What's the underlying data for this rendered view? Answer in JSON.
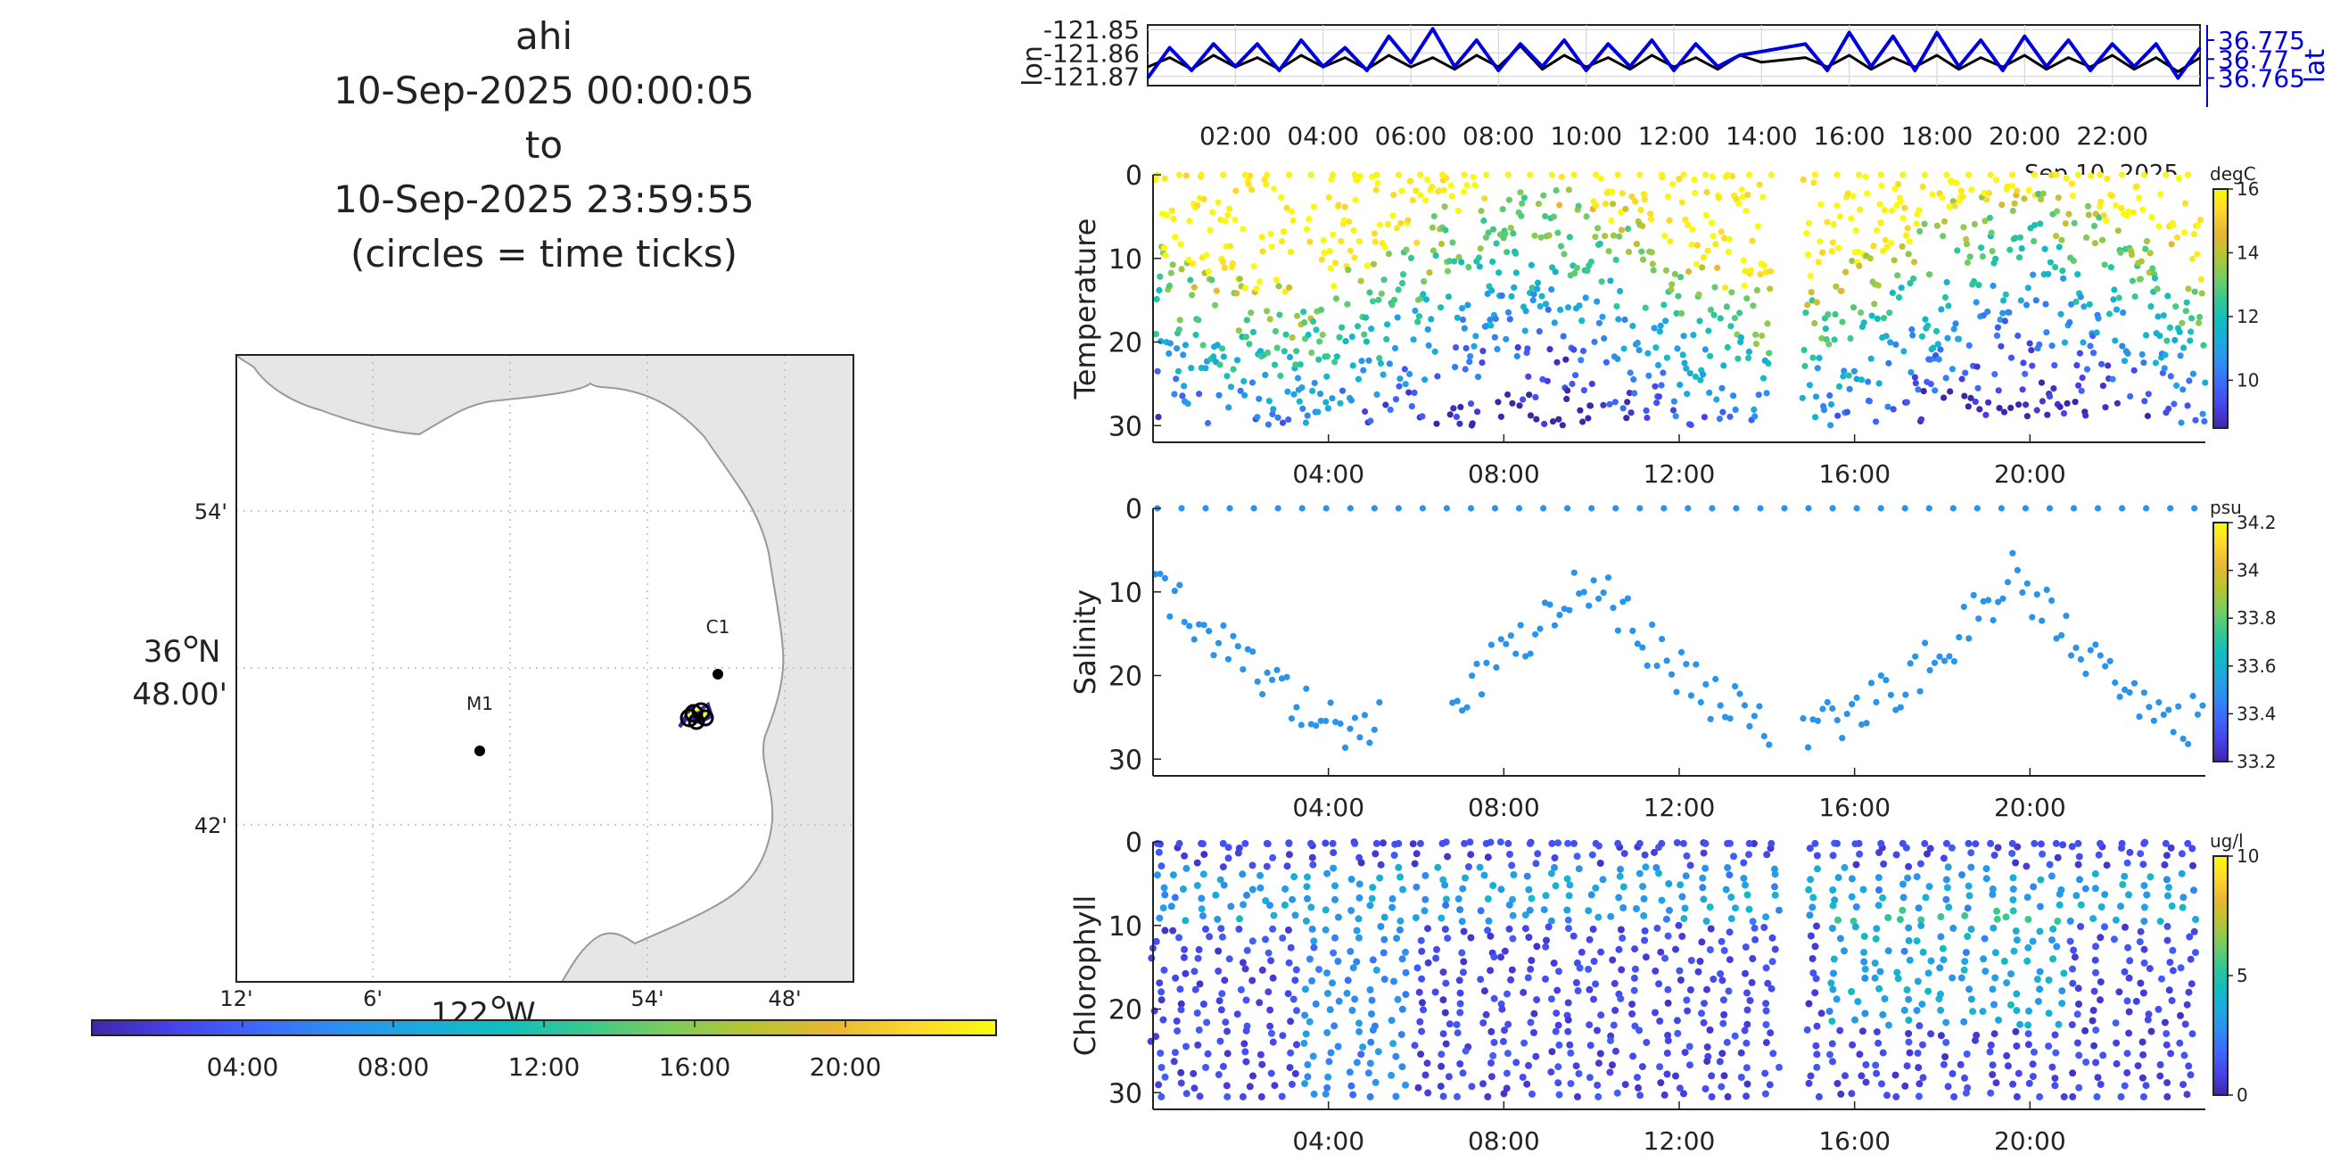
{
  "title": {
    "line1": "ahi",
    "line2": "10-Sep-2025 00:00:05",
    "line3": "to",
    "line4": "10-Sep-2025 23:59:55",
    "line5": "(circles = time ticks)"
  },
  "colors": {
    "parula": [
      "#3e26a8",
      "#4743e9",
      "#3e68fb",
      "#2c8ff0",
      "#1caadc",
      "#10bebe",
      "#38c88e",
      "#7ccc5e",
      "#b7c532",
      "#e9b634",
      "#fdd82c",
      "#f9fb0e"
    ],
    "trace_lon": "#000000",
    "trace_lat": "#0000dd",
    "land": "#e6e6e6",
    "coast": "#999999",
    "grid": "#c8c8c8"
  },
  "map": {
    "lat_ticks": [
      "54'",
      "48.00'",
      "42'"
    ],
    "lat_degree_label": "36",
    "lat_degree_suffix": "N",
    "lon_ticks": [
      "12'",
      "6'",
      "54'",
      "48'"
    ],
    "lon_degree_label": "122",
    "lon_degree_suffix": "W",
    "stations": [
      {
        "name": "M1",
        "lon": -122.0,
        "lat": 36.75
      },
      {
        "name": "C1",
        "lon": -121.845,
        "lat": 36.797
      }
    ],
    "track": {
      "lon": -121.865,
      "lat": 36.772
    }
  },
  "time_colorbar": {
    "ticks": [
      "04:00",
      "08:00",
      "12:00",
      "16:00",
      "20:00"
    ]
  },
  "chart_data": [
    {
      "type": "line",
      "title": "",
      "xlabel": "",
      "ylabel": "lon",
      "y2label": "lat",
      "x_ticks": [
        "02:00",
        "04:00",
        "06:00",
        "08:00",
        "10:00",
        "12:00",
        "14:00",
        "16:00",
        "18:00",
        "20:00",
        "22:00"
      ],
      "x_corner_label": "Sep 10, 2025",
      "xlim_hours": [
        0,
        24
      ],
      "ylim": [
        -121.874,
        -121.848
      ],
      "y_ticks": [
        "-121.85",
        "-121.86",
        "-121.87"
      ],
      "y2lim": [
        36.763,
        36.779
      ],
      "y2_ticks": [
        "36.775",
        "36.77",
        "36.765"
      ],
      "series": [
        {
          "axis": "left",
          "color": "#000000",
          "hours": [
            0,
            0.5,
            1,
            1.5,
            2,
            2.5,
            3,
            3.5,
            4,
            4.5,
            5,
            5.5,
            6,
            6.5,
            7,
            7.5,
            8,
            8.5,
            9,
            9.5,
            10,
            10.5,
            11,
            11.5,
            12,
            12.5,
            13,
            13.5,
            14,
            15,
            15.5,
            16,
            16.5,
            17,
            17.5,
            18,
            18.5,
            19,
            19.5,
            20,
            20.5,
            21,
            21.5,
            22,
            22.5,
            23,
            23.5,
            24
          ],
          "values": [
            -121.866,
            -121.862,
            -121.867,
            -121.861,
            -121.866,
            -121.862,
            -121.867,
            -121.861,
            -121.866,
            -121.862,
            -121.867,
            -121.861,
            -121.866,
            -121.862,
            -121.867,
            -121.861,
            -121.866,
            -121.857,
            -121.867,
            -121.861,
            -121.866,
            -121.862,
            -121.867,
            -121.861,
            -121.866,
            -121.862,
            -121.867,
            -121.861,
            -121.864,
            -121.862,
            -121.866,
            -121.861,
            -121.867,
            -121.862,
            -121.866,
            -121.861,
            -121.867,
            -121.862,
            -121.866,
            -121.861,
            -121.867,
            -121.862,
            -121.866,
            -121.861,
            -121.867,
            -121.862,
            -121.868,
            -121.862
          ]
        },
        {
          "axis": "right",
          "color": "#0000dd",
          "hours": [
            0,
            0.5,
            1,
            1.5,
            2,
            2.5,
            3,
            3.5,
            4,
            4.5,
            5,
            5.5,
            6,
            6.5,
            7,
            7.5,
            8,
            8.5,
            9,
            9.5,
            10,
            10.5,
            11,
            11.5,
            12,
            12.5,
            13,
            13.5,
            14,
            15,
            15.5,
            16,
            16.5,
            17,
            17.5,
            18,
            18.5,
            19,
            19.5,
            20,
            20.5,
            21,
            21.5,
            22,
            22.5,
            23,
            23.5,
            24
          ],
          "values": [
            36.765,
            36.773,
            36.767,
            36.774,
            36.768,
            36.774,
            36.767,
            36.775,
            36.768,
            36.773,
            36.767,
            36.776,
            36.769,
            36.778,
            36.768,
            36.775,
            36.767,
            36.774,
            36.768,
            36.775,
            36.767,
            36.774,
            36.768,
            36.775,
            36.767,
            36.774,
            36.768,
            36.771,
            36.772,
            36.774,
            36.767,
            36.777,
            36.768,
            36.776,
            36.767,
            36.777,
            36.768,
            36.775,
            36.767,
            36.776,
            36.768,
            36.775,
            36.767,
            36.774,
            36.768,
            36.774,
            36.765,
            36.773
          ]
        }
      ]
    },
    {
      "type": "scatter",
      "ylabel": "Temperature",
      "xlabel": "",
      "x_ticks": [
        "04:00",
        "08:00",
        "12:00",
        "16:00",
        "20:00"
      ],
      "xlim_hours": [
        0,
        24
      ],
      "ylim": [
        0,
        32
      ],
      "y_ticks": [
        "0",
        "10",
        "20",
        "30"
      ],
      "y_reversed": true,
      "gap_hours": [
        14.1,
        14.8
      ],
      "colorbar": {
        "unit": "degC",
        "range": [
          8.5,
          16
        ],
        "ticks": [
          "16",
          "14",
          "12",
          "10"
        ],
        "tick_values": [
          16,
          14,
          12,
          10
        ]
      },
      "profile": {
        "surface": 16,
        "mid_depth": 12,
        "deep": 11,
        "thermocline": 8,
        "points_per_hour": 55
      }
    },
    {
      "type": "scatter",
      "ylabel": "Salinity",
      "xlabel": "",
      "x_ticks": [
        "04:00",
        "08:00",
        "12:00",
        "16:00",
        "20:00"
      ],
      "xlim_hours": [
        0,
        24
      ],
      "ylim": [
        0,
        32
      ],
      "y_ticks": [
        "0",
        "10",
        "20",
        "30"
      ],
      "y_reversed": true,
      "colorbar": {
        "unit": "psu",
        "range": [
          33.2,
          34.2
        ],
        "ticks": [
          "34.2",
          "34",
          "33.8",
          "33.6",
          "33.4",
          "33.2"
        ],
        "tick_values": [
          34.2,
          34.0,
          33.8,
          33.6,
          33.4,
          33.2
        ]
      },
      "value": 33.6,
      "points_per_hour": 9
    },
    {
      "type": "scatter",
      "ylabel": "Chlorophyll",
      "xlabel": "",
      "x_ticks": [
        "04:00",
        "08:00",
        "12:00",
        "16:00",
        "20:00"
      ],
      "xlim_hours": [
        0,
        24
      ],
      "ylim": [
        0,
        32
      ],
      "y_ticks": [
        "0",
        "10",
        "20",
        "30"
      ],
      "y_reversed": true,
      "gap_hours": [
        14.1,
        14.8
      ],
      "colorbar": {
        "unit": "ug/l",
        "range": [
          0,
          10
        ],
        "ticks": [
          "10",
          "5",
          "0"
        ],
        "tick_values": [
          10,
          5,
          0
        ]
      },
      "profile": {
        "max_value": 5.5,
        "casts_per_hour": 2
      }
    }
  ]
}
